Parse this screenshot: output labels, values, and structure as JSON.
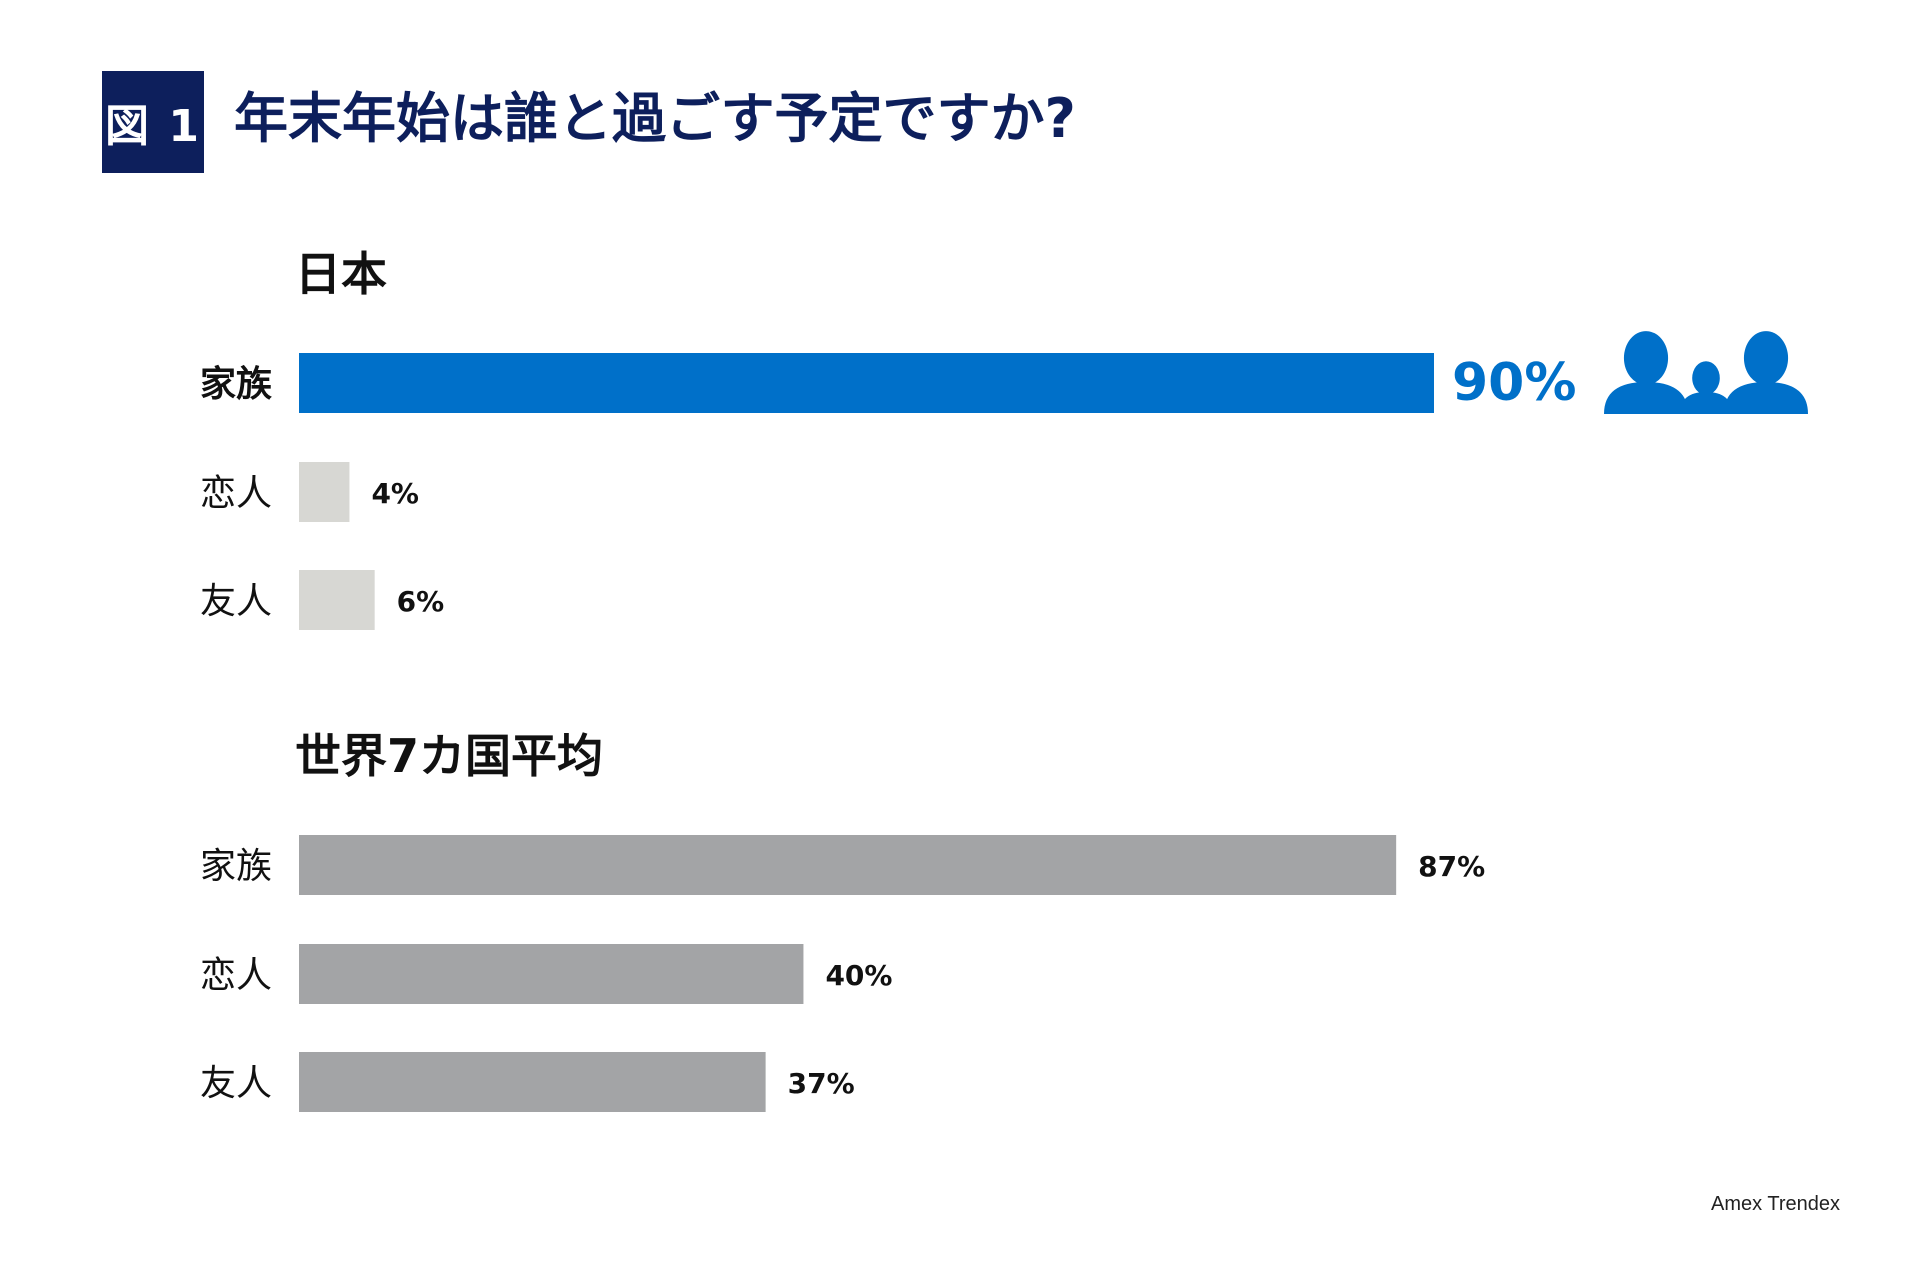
{
  "header": {
    "badge": "図 1",
    "title": "年末年始は誰と過ごす予定ですか?"
  },
  "chart_data": [
    {
      "type": "bar",
      "orientation": "horizontal",
      "title": "日本",
      "categories": [
        "家族",
        "恋人",
        "友人"
      ],
      "values": [
        90,
        4,
        6
      ],
      "value_labels": [
        "90%",
        "4%",
        "6%"
      ],
      "unit": "%",
      "xlim": [
        0,
        100
      ],
      "grid": false,
      "highlight_index": 0,
      "colors": {
        "highlight": "#0070c9",
        "default": "#d7d7d3"
      }
    },
    {
      "type": "bar",
      "orientation": "horizontal",
      "title": "世界7カ国平均",
      "categories": [
        "家族",
        "恋人",
        "友人"
      ],
      "values": [
        87,
        40,
        37
      ],
      "value_labels": [
        "87%",
        "40%",
        "37%"
      ],
      "unit": "%",
      "xlim": [
        0,
        100
      ],
      "grid": false,
      "highlight_index": null,
      "colors": {
        "default": "#a3a4a6"
      }
    }
  ],
  "decoration": {
    "icon": "family-icon",
    "color": "#0070c9"
  },
  "source": "Amex Trendex"
}
